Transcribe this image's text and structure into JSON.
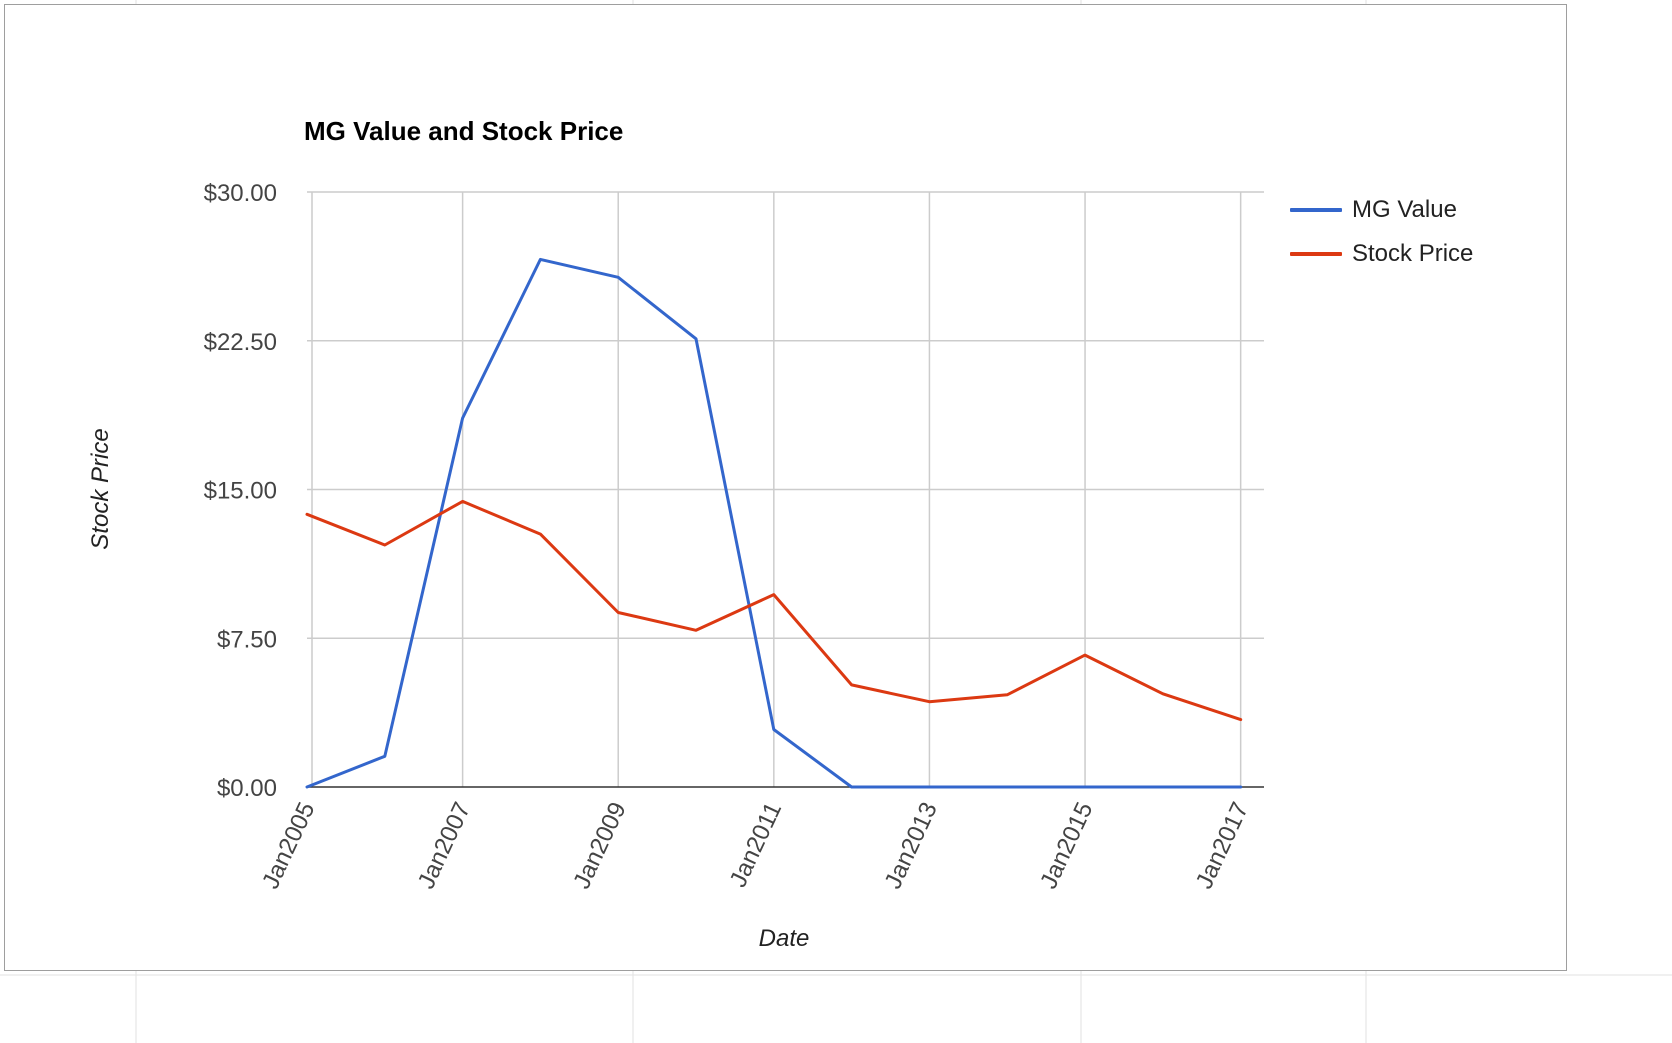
{
  "chart_data": {
    "type": "line",
    "title": "MG Value and Stock Price",
    "xlabel": "Date",
    "ylabel": "Stock Price",
    "x": [
      "2005-01",
      "2006-01",
      "2007-01",
      "2008-01",
      "2009-01",
      "2010-01",
      "2011-01",
      "2012-01",
      "2013-01",
      "2014-01",
      "2015-01",
      "2016-01",
      "2017-01"
    ],
    "x_ticks": [
      "Jan2005",
      "Jan2007",
      "Jan2009",
      "Jan2011",
      "Jan2013",
      "Jan2015",
      "Jan2017"
    ],
    "y_ticks": [
      "$0.00",
      "$7.50",
      "$15.00",
      "$22.50",
      "$30.00"
    ],
    "ylim": [
      0,
      30
    ],
    "grid": true,
    "legend_position": "top-right",
    "series": [
      {
        "name": "MG Value",
        "color": "#3366cc",
        "values": [
          0,
          1.55,
          18.6,
          26.6,
          25.7,
          22.6,
          2.9,
          0,
          0,
          0,
          0,
          0,
          0
        ]
      },
      {
        "name": "Stock Price",
        "color": "#dc3912",
        "values": [
          13.75,
          12.2,
          14.4,
          12.75,
          8.8,
          7.9,
          9.7,
          5.15,
          4.3,
          4.65,
          6.65,
          4.7,
          3.4
        ]
      }
    ]
  }
}
